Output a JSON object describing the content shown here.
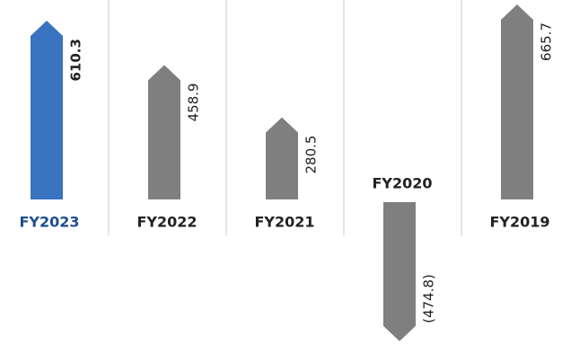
{
  "chart_data": {
    "type": "arrow-bar",
    "categories": [
      "FY2023",
      "FY2022",
      "FY2021",
      "FY2020",
      "FY2019"
    ],
    "values": [
      610.3,
      458.9,
      280.5,
      -474.8,
      665.7
    ],
    "value_labels": [
      "610.3",
      "458.9",
      "280.5",
      "(474.8)",
      "665.7"
    ],
    "colors": [
      "#3a73bf",
      "#7f7f7f",
      "#7f7f7f",
      "#7f7f7f",
      "#7f7f7f"
    ],
    "label_colors": [
      "#1f4e8c",
      "#222222",
      "#222222",
      "#222222",
      "#222222"
    ]
  }
}
